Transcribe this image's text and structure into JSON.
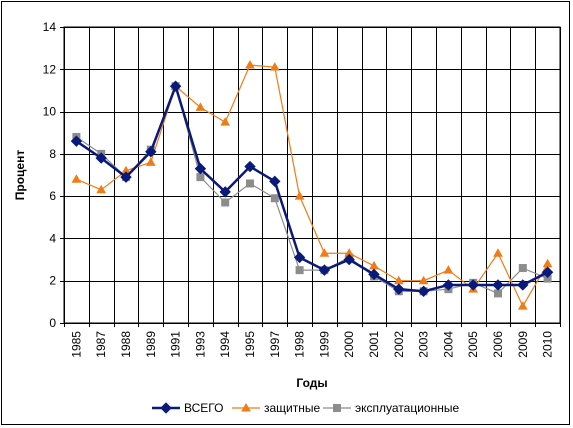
{
  "chart_data": {
    "type": "line",
    "title": "",
    "xlabel": "Годы",
    "ylabel": "Процент",
    "ylim": [
      0,
      14
    ],
    "yticks": [
      0,
      2,
      4,
      6,
      8,
      10,
      12,
      14
    ],
    "grid": true,
    "legend_position": "bottom",
    "categories": [
      "1985",
      "1987",
      "1988",
      "1989",
      "1991",
      "1993",
      "1994",
      "1995",
      "1997",
      "1998",
      "1999",
      "2000",
      "2001",
      "2002",
      "2003",
      "2004",
      "2005",
      "2006",
      "2009",
      "2010"
    ],
    "series": [
      {
        "name": "ВСЕГО",
        "color": "#0a1a7a",
        "marker": "diamond",
        "values": [
          8.6,
          7.8,
          6.9,
          8.1,
          11.2,
          7.3,
          6.2,
          7.4,
          6.7,
          3.1,
          2.5,
          3.0,
          2.3,
          1.6,
          1.5,
          1.8,
          1.8,
          1.8,
          1.8,
          2.4
        ]
      },
      {
        "name": "защитные",
        "color": "#f07c18",
        "marker": "triangle",
        "values": [
          6.8,
          6.3,
          7.2,
          7.6,
          11.2,
          10.2,
          9.5,
          12.2,
          12.1,
          6.0,
          3.3,
          3.3,
          2.7,
          2.0,
          2.0,
          2.5,
          1.6,
          3.3,
          0.8,
          2.8
        ]
      },
      {
        "name": "эксплуатационные",
        "color": "#8c8c8c",
        "marker": "square",
        "values": [
          8.8,
          8.0,
          6.9,
          8.2,
          11.2,
          6.9,
          5.7,
          6.6,
          5.9,
          2.5,
          2.5,
          3.1,
          2.2,
          1.5,
          1.5,
          1.6,
          1.9,
          1.4,
          2.6,
          2.1
        ]
      }
    ]
  }
}
